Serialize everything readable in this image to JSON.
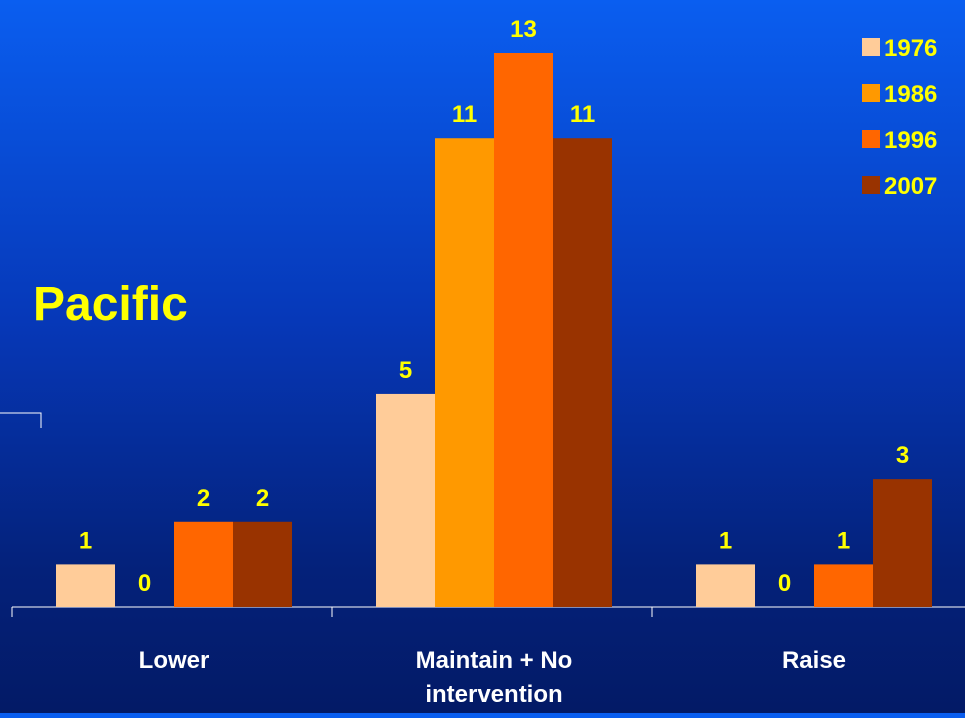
{
  "chart_data": {
    "type": "bar",
    "title": "Pacific",
    "categories": [
      "Lower",
      "Maintain + No intervention",
      "Raise"
    ],
    "category_lines": [
      [
        "Lower"
      ],
      [
        "Maintain + No",
        "intervention"
      ],
      [
        "Raise"
      ]
    ],
    "series": [
      {
        "name": "1976",
        "values": [
          1,
          5,
          1
        ],
        "color": "#ffcc99"
      },
      {
        "name": "1986",
        "values": [
          0,
          11,
          0
        ],
        "color": "#ff9900"
      },
      {
        "name": "1996",
        "values": [
          2,
          13,
          1
        ],
        "color": "#ff6600"
      },
      {
        "name": "2007",
        "values": [
          2,
          11,
          3
        ],
        "color": "#993300"
      }
    ],
    "ylim": [
      0,
      13
    ],
    "legend_position": "top-right",
    "label_color": "#ffff00",
    "axis_color": "#ffffff"
  }
}
